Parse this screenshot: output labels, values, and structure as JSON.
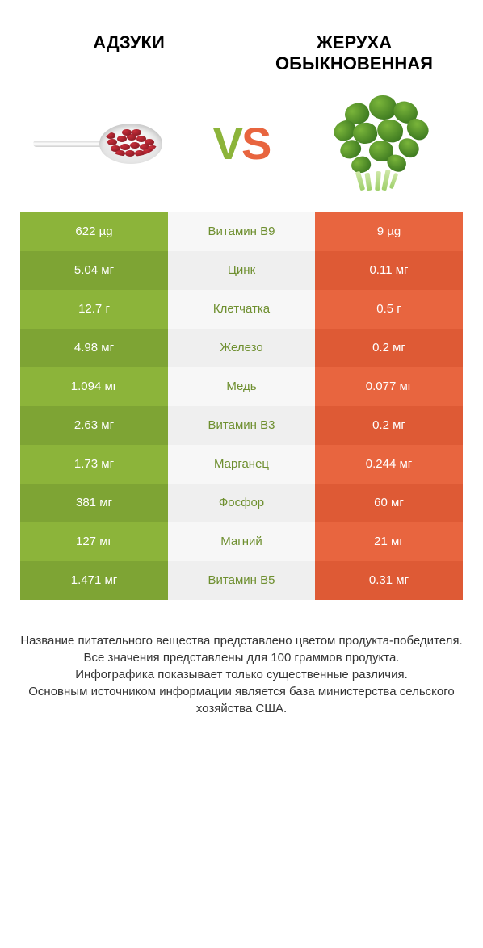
{
  "header": {
    "left": "АДЗУКИ",
    "right": "ЖЕРУХА ОБЫКНОВЕННАЯ"
  },
  "vs": {
    "v": "V",
    "s": "S"
  },
  "colors": {
    "green": "#8cb43a",
    "green_dark": "#7ea434",
    "orange": "#e8653f",
    "orange_dark": "#de5a35",
    "mid_light": "#f7f7f7",
    "mid_dark": "#efefef",
    "green_text": "#6e8f2f",
    "orange_text": "#c94e2f"
  },
  "rows": [
    {
      "left": "622 µg",
      "mid": "Витамин B9",
      "right": "9 µg",
      "winner": "left"
    },
    {
      "left": "5.04 мг",
      "mid": "Цинк",
      "right": "0.11 мг",
      "winner": "left"
    },
    {
      "left": "12.7 г",
      "mid": "Клетчатка",
      "right": "0.5 г",
      "winner": "left"
    },
    {
      "left": "4.98 мг",
      "mid": "Железо",
      "right": "0.2 мг",
      "winner": "left"
    },
    {
      "left": "1.094 мг",
      "mid": "Медь",
      "right": "0.077 мг",
      "winner": "left"
    },
    {
      "left": "2.63 мг",
      "mid": "Витамин B3",
      "right": "0.2 мг",
      "winner": "left"
    },
    {
      "left": "1.73 мг",
      "mid": "Марганец",
      "right": "0.244 мг",
      "winner": "left"
    },
    {
      "left": "381 мг",
      "mid": "Фосфор",
      "right": "60 мг",
      "winner": "left"
    },
    {
      "left": "127 мг",
      "mid": "Магний",
      "right": "21 мг",
      "winner": "left"
    },
    {
      "left": "1.471 мг",
      "mid": "Витамин B5",
      "right": "0.31 мг",
      "winner": "left"
    }
  ],
  "footer_lines": [
    "Название питательного вещества представлено цветом продукта-победителя.",
    "Все значения представлены для 100 граммов продукта.",
    "Инфографика показывает только существенные различия.",
    "Основным источником информации является база министерства сельского хозяйства США."
  ]
}
